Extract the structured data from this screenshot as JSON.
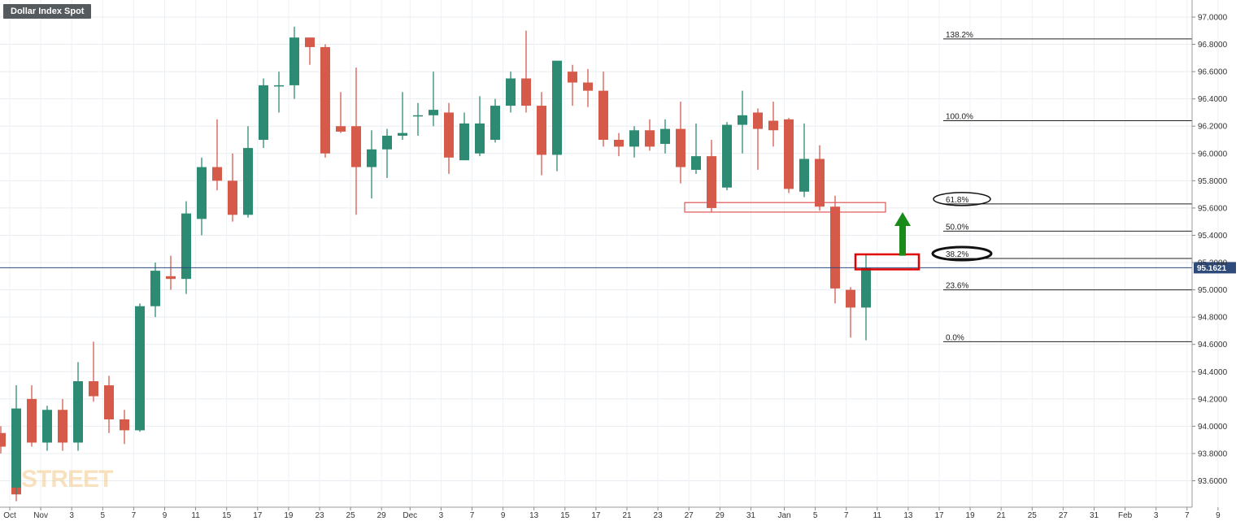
{
  "header": {
    "title": "Dollar Index Spot"
  },
  "watermark": {
    "text": "STREET"
  },
  "chart_data": {
    "type": "candlestick",
    "title": "Dollar Index Spot",
    "ylim": [
      93.5,
      97.05
    ],
    "y_ticks": [
      "93.6000",
      "93.8000",
      "94.0000",
      "94.2000",
      "94.4000",
      "94.6000",
      "94.8000",
      "95.0000",
      "95.2000",
      "95.4000",
      "95.6000",
      "95.8000",
      "96.0000",
      "96.2000",
      "96.4000",
      "96.6000",
      "96.8000",
      "97.0000"
    ],
    "x_ticks": [
      "Oct",
      "Nov",
      "3",
      "5",
      "7",
      "9",
      "11",
      "15",
      "17",
      "19",
      "23",
      "25",
      "29",
      "Dec",
      "3",
      "7",
      "9",
      "13",
      "15",
      "17",
      "21",
      "23",
      "27",
      "29",
      "31",
      "Jan",
      "5",
      "7",
      "11",
      "13",
      "17",
      "19",
      "21",
      "25",
      "27",
      "31",
      "Feb",
      "3",
      "7",
      "9"
    ],
    "grid": true,
    "current_price": {
      "value": 95.1621,
      "label": "95.1621",
      "color": "#2f4b7c"
    },
    "colors": {
      "up": "#2e8b73",
      "down": "#d65a4a"
    },
    "candles": [
      {
        "date": "Oct 29",
        "o": 93.95,
        "h": 94.0,
        "l": 93.8,
        "c": 93.85
      },
      {
        "date": "Oct 30",
        "o": 93.85,
        "h": 93.95,
        "l": 93.45,
        "c": 93.5
      },
      {
        "date": "Nov 1",
        "o": 93.55,
        "h": 94.3,
        "l": 93.5,
        "c": 94.13
      },
      {
        "date": "Nov 2",
        "o": 94.2,
        "h": 94.3,
        "l": 93.85,
        "c": 93.88
      },
      {
        "date": "Nov 3",
        "o": 93.88,
        "h": 94.15,
        "l": 93.82,
        "c": 94.12
      },
      {
        "date": "Nov 4",
        "o": 94.12,
        "h": 94.2,
        "l": 93.82,
        "c": 93.88
      },
      {
        "date": "Nov 5",
        "o": 93.88,
        "h": 94.47,
        "l": 93.82,
        "c": 94.33
      },
      {
        "date": "Nov 8",
        "o": 94.33,
        "h": 94.62,
        "l": 94.18,
        "c": 94.22
      },
      {
        "date": "Nov 9",
        "o": 94.3,
        "h": 94.37,
        "l": 93.95,
        "c": 94.05
      },
      {
        "date": "Nov 10",
        "o": 94.05,
        "h": 94.12,
        "l": 93.87,
        "c": 93.97
      },
      {
        "date": "Nov 11",
        "o": 93.97,
        "h": 94.9,
        "l": 93.96,
        "c": 94.88
      },
      {
        "date": "Nov 12",
        "o": 94.88,
        "h": 95.2,
        "l": 94.8,
        "c": 95.14
      },
      {
        "date": "Nov 15",
        "o": 95.1,
        "h": 95.25,
        "l": 95.0,
        "c": 95.08
      },
      {
        "date": "Nov 16",
        "o": 95.08,
        "h": 95.65,
        "l": 94.97,
        "c": 95.56
      },
      {
        "date": "Nov 17",
        "o": 95.52,
        "h": 95.97,
        "l": 95.4,
        "c": 95.9
      },
      {
        "date": "Nov 18",
        "o": 95.9,
        "h": 96.25,
        "l": 95.73,
        "c": 95.8
      },
      {
        "date": "Nov 19",
        "o": 95.8,
        "h": 96.0,
        "l": 95.5,
        "c": 95.55
      },
      {
        "date": "Nov 22",
        "o": 95.55,
        "h": 96.2,
        "l": 95.53,
        "c": 96.04
      },
      {
        "date": "Nov 23",
        "o": 96.1,
        "h": 96.55,
        "l": 96.04,
        "c": 96.5
      },
      {
        "date": "Nov 24",
        "o": 96.5,
        "h": 96.6,
        "l": 96.3,
        "c": 96.5
      },
      {
        "date": "Nov 25",
        "o": 96.5,
        "h": 96.93,
        "l": 96.4,
        "c": 96.85
      },
      {
        "date": "Nov 26",
        "o": 96.85,
        "h": 96.85,
        "l": 96.65,
        "c": 96.78
      },
      {
        "date": "Nov 29",
        "o": 96.78,
        "h": 96.8,
        "l": 95.97,
        "c": 96.0
      },
      {
        "date": "Nov 30",
        "o": 96.2,
        "h": 96.45,
        "l": 96.15,
        "c": 96.16
      },
      {
        "date": "Dec 1",
        "o": 96.2,
        "h": 96.63,
        "l": 95.55,
        "c": 95.9
      },
      {
        "date": "Dec 2",
        "o": 95.9,
        "h": 96.17,
        "l": 95.67,
        "c": 96.03
      },
      {
        "date": "Dec 3",
        "o": 96.03,
        "h": 96.18,
        "l": 95.82,
        "c": 96.13
      },
      {
        "date": "Dec 6",
        "o": 96.13,
        "h": 96.45,
        "l": 96.1,
        "c": 96.15
      },
      {
        "date": "Dec 7",
        "o": 96.28,
        "h": 96.37,
        "l": 96.13,
        "c": 96.28
      },
      {
        "date": "Dec 8",
        "o": 96.28,
        "h": 96.6,
        "l": 96.2,
        "c": 96.32
      },
      {
        "date": "Dec 9",
        "o": 96.3,
        "h": 96.37,
        "l": 95.85,
        "c": 95.97
      },
      {
        "date": "Dec 10",
        "o": 95.95,
        "h": 96.3,
        "l": 95.95,
        "c": 96.22
      },
      {
        "date": "Dec 13",
        "o": 96.0,
        "h": 96.42,
        "l": 95.98,
        "c": 96.22
      },
      {
        "date": "Dec 14",
        "o": 96.1,
        "h": 96.4,
        "l": 96.08,
        "c": 96.35
      },
      {
        "date": "Dec 15",
        "o": 96.35,
        "h": 96.6,
        "l": 96.3,
        "c": 96.55
      },
      {
        "date": "Dec 16",
        "o": 96.55,
        "h": 96.9,
        "l": 96.3,
        "c": 96.35
      },
      {
        "date": "Dec 17",
        "o": 96.35,
        "h": 96.45,
        "l": 95.84,
        "c": 95.99
      },
      {
        "date": "Dec 20",
        "o": 95.99,
        "h": 96.68,
        "l": 95.87,
        "c": 96.68
      },
      {
        "date": "Dec 21",
        "o": 96.6,
        "h": 96.65,
        "l": 96.35,
        "c": 96.52
      },
      {
        "date": "Dec 22",
        "o": 96.52,
        "h": 96.62,
        "l": 96.34,
        "c": 96.46
      },
      {
        "date": "Dec 23",
        "o": 96.46,
        "h": 96.6,
        "l": 96.05,
        "c": 96.1
      },
      {
        "date": "Dec 24",
        "o": 96.1,
        "h": 96.15,
        "l": 95.98,
        "c": 96.05
      },
      {
        "date": "Dec 27",
        "o": 96.05,
        "h": 96.2,
        "l": 95.97,
        "c": 96.17
      },
      {
        "date": "Dec 28",
        "o": 96.17,
        "h": 96.25,
        "l": 96.02,
        "c": 96.05
      },
      {
        "date": "Dec 29",
        "o": 96.07,
        "h": 96.25,
        "l": 96.0,
        "c": 96.18
      },
      {
        "date": "Dec 30",
        "o": 96.18,
        "h": 96.38,
        "l": 95.78,
        "c": 95.9
      },
      {
        "date": "Dec 31",
        "o": 95.88,
        "h": 96.22,
        "l": 95.85,
        "c": 95.98
      },
      {
        "date": "Jan 3",
        "o": 95.98,
        "h": 96.1,
        "l": 95.57,
        "c": 95.6
      },
      {
        "date": "Jan 4",
        "o": 95.75,
        "h": 96.23,
        "l": 95.73,
        "c": 96.21
      },
      {
        "date": "Jan 5",
        "o": 96.21,
        "h": 96.46,
        "l": 96.0,
        "c": 96.28
      },
      {
        "date": "Jan 6",
        "o": 96.3,
        "h": 96.33,
        "l": 95.88,
        "c": 96.18
      },
      {
        "date": "Jan 7",
        "o": 96.24,
        "h": 96.38,
        "l": 96.05,
        "c": 96.17
      },
      {
        "date": "Jan 10",
        "o": 96.25,
        "h": 96.26,
        "l": 95.71,
        "c": 95.74
      },
      {
        "date": "Jan 11",
        "o": 95.72,
        "h": 96.22,
        "l": 95.68,
        "c": 95.96
      },
      {
        "date": "Jan 12",
        "o": 95.96,
        "h": 96.06,
        "l": 95.58,
        "c": 95.61
      },
      {
        "date": "Jan 13",
        "o": 95.61,
        "h": 95.69,
        "l": 94.9,
        "c": 95.01
      },
      {
        "date": "Jan 14",
        "o": 95.0,
        "h": 95.02,
        "l": 94.65,
        "c": 94.87
      },
      {
        "date": "Jan 17",
        "o": 94.87,
        "h": 95.26,
        "l": 94.63,
        "c": 95.16
      }
    ],
    "fibonacci": [
      {
        "label": "138.2%",
        "value": 96.84
      },
      {
        "label": "100.0%",
        "value": 96.24
      },
      {
        "label": "61.8%",
        "value": 95.63,
        "circled": "thin"
      },
      {
        "label": "50.0%",
        "value": 95.43
      },
      {
        "label": "38.2%",
        "value": 95.23,
        "circled": "bold"
      },
      {
        "label": "23.6%",
        "value": 95.0
      },
      {
        "label": "0.0%",
        "value": 94.62
      }
    ],
    "annotations": {
      "resistance_zone": {
        "from": "Dec 31",
        "to": "Jan 19",
        "top": 95.64,
        "bottom": 95.57,
        "color": "#e05555"
      },
      "current_zone": {
        "from": "Jan 14",
        "to": "Jan 19",
        "top": 95.26,
        "bottom": 95.15,
        "color": "#e00000"
      },
      "arrow": {
        "direction": "up",
        "date": "Jan 18",
        "from": 95.25,
        "to": 95.57,
        "color": "#1a8a1a"
      }
    }
  }
}
